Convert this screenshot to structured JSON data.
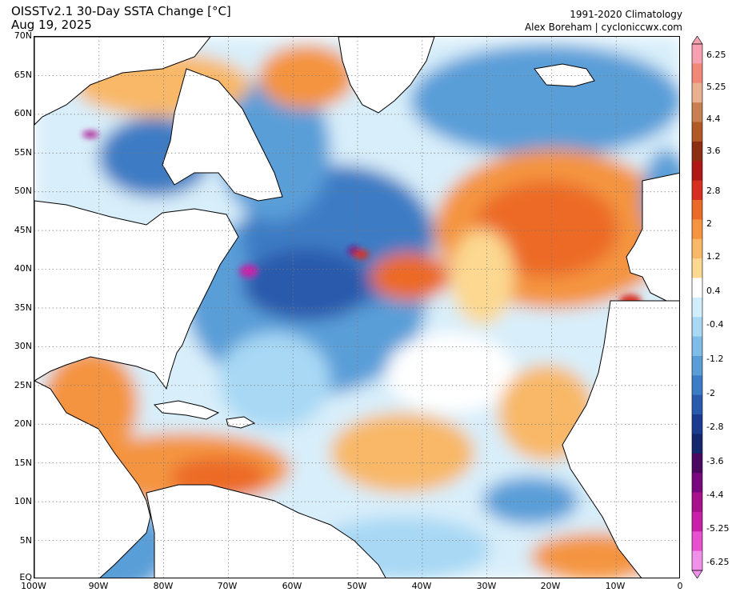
{
  "header": {
    "title": "OISSTv2.1 30-Day SSTA Change [°C]",
    "date": "Aug 19, 2025",
    "climatology": "1991-2020 Climatology",
    "credit": "Alex Boreham | cycloniccwx.com"
  },
  "map": {
    "lat_labels": [
      "70N",
      "65N",
      "60N",
      "55N",
      "50N",
      "45N",
      "40N",
      "35N",
      "30N",
      "25N",
      "20N",
      "15N",
      "10N",
      "5N",
      "EQ"
    ],
    "lon_labels": [
      "100W",
      "90W",
      "80W",
      "70W",
      "60W",
      "50W",
      "40W",
      "30W",
      "20W",
      "10W",
      "0"
    ],
    "lat_range": [
      0,
      70
    ],
    "lon_range": [
      -100,
      0
    ],
    "gridlines": "dotted"
  },
  "colorbar": {
    "labels": [
      "6.25",
      "5.25",
      "4.4",
      "3.6",
      "2.8",
      "2",
      "1.2",
      "0.4",
      "-0.4",
      "-1.2",
      "-2",
      "-2.8",
      "-3.6",
      "-4.4",
      "-5.25",
      "-6.25"
    ],
    "colors": [
      "#f7a0b0",
      "#f08878",
      "#e8b090",
      "#c88050",
      "#b05a28",
      "#8c2e12",
      "#b01818",
      "#d83020",
      "#ec6a28",
      "#f49440",
      "#f8b868",
      "#fcd890",
      "#ffffff",
      "#d0eefc",
      "#a8d8f4",
      "#80bce8",
      "#5a9ed8",
      "#3c7cc4",
      "#2a5aac",
      "#1c3c90",
      "#142870",
      "#4a0860",
      "#78087e",
      "#a8108c",
      "#c820a8",
      "#e850d0",
      "#f090e8"
    ]
  }
}
